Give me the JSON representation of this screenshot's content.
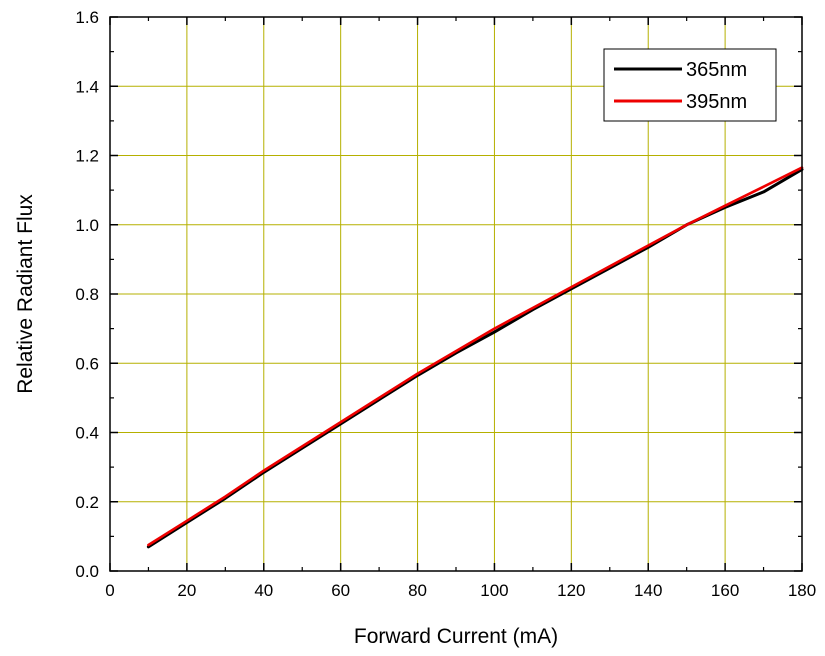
{
  "chart_data": {
    "type": "line",
    "xlabel": "Forward Current (mA)",
    "ylabel": "Relative  Radiant Flux",
    "xlim": [
      0,
      180
    ],
    "ylim": [
      0.0,
      1.6
    ],
    "x_ticks": [
      "0",
      "20",
      "40",
      "60",
      "80",
      "100",
      "120",
      "140",
      "160",
      "180"
    ],
    "y_ticks": [
      "0.0",
      "0.2",
      "0.4",
      "0.6",
      "0.8",
      "1.0",
      "1.2",
      "1.4",
      "1.6"
    ],
    "grid": true,
    "grid_color": "#b5b000",
    "legend_position": "top-right",
    "series": [
      {
        "name": "365nm",
        "color": "#000000",
        "x": [
          10,
          20,
          30,
          40,
          50,
          60,
          70,
          80,
          90,
          100,
          110,
          120,
          130,
          140,
          150,
          160,
          170,
          180
        ],
        "y": [
          0.07,
          0.14,
          0.21,
          0.285,
          0.355,
          0.425,
          0.495,
          0.565,
          0.63,
          0.69,
          0.755,
          0.815,
          0.875,
          0.935,
          1.0,
          1.05,
          1.095,
          1.16
        ]
      },
      {
        "name": "395nm",
        "color": "#ee0000",
        "x": [
          10,
          20,
          30,
          40,
          50,
          60,
          70,
          80,
          90,
          100,
          110,
          120,
          130,
          140,
          150,
          160,
          170,
          180
        ],
        "y": [
          0.075,
          0.145,
          0.215,
          0.29,
          0.36,
          0.43,
          0.5,
          0.57,
          0.635,
          0.7,
          0.76,
          0.82,
          0.88,
          0.94,
          1.0,
          1.055,
          1.11,
          1.165
        ]
      }
    ]
  }
}
